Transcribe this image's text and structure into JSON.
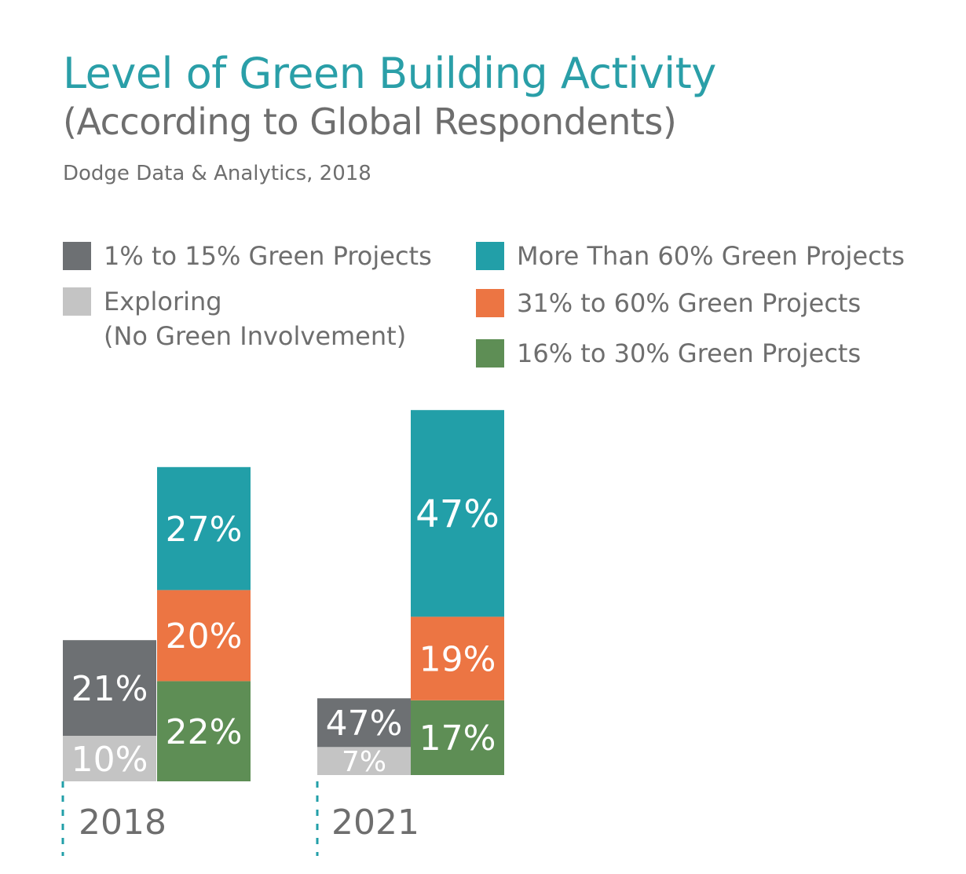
{
  "title": "Level of Green Building Activity",
  "subtitle": "(According to Global Respondents)",
  "source": "Dodge Data & Analytics, 2018",
  "legend": [
    {
      "label": "1% to 15% Green Projects",
      "label2": "",
      "color": "#6d7073"
    },
    {
      "label": "Exploring",
      "label2": "(No Green Involvement)",
      "color": "#c4c4c4"
    },
    {
      "label": "More Than 60% Green Projects",
      "label2": "",
      "color": "#229fa8"
    },
    {
      "label": "31% to 60% Green Projects",
      "label2": "",
      "color": "#ec7543"
    },
    {
      "label": "16% to 30% Green Projects",
      "label2": "",
      "color": "#5e8e55"
    }
  ],
  "chart_data": {
    "type": "bar",
    "categories": [
      "2018",
      "2021"
    ],
    "series": [
      {
        "name": "Exploring (No Green Involvement)",
        "values": [
          10,
          7
        ],
        "labels": [
          "10%",
          "7%"
        ],
        "color": "#c4c4c4",
        "stack": "left"
      },
      {
        "name": "1% to 15% Green Projects",
        "values": [
          21,
          47
        ],
        "labels": [
          "21%",
          "47%"
        ],
        "color": "#6d7073",
        "stack": "left"
      },
      {
        "name": "16% to 30% Green Projects",
        "values": [
          22,
          17
        ],
        "labels": [
          "22%",
          "17%"
        ],
        "color": "#5e8e55",
        "stack": "right"
      },
      {
        "name": "31% to 60% Green Projects",
        "values": [
          20,
          19
        ],
        "labels": [
          "20%",
          "19%"
        ],
        "color": "#ec7543",
        "stack": "right"
      },
      {
        "name": "More Than 60% Green Projects",
        "values": [
          27,
          47
        ],
        "labels": [
          "27%",
          "47%"
        ],
        "color": "#229fa8",
        "stack": "right"
      }
    ],
    "note": "Exploring and 1% to 15% bars share one stack; the three green-share groups stack in the other column. 2021 left column is drawn compressed relative to its label."
  }
}
